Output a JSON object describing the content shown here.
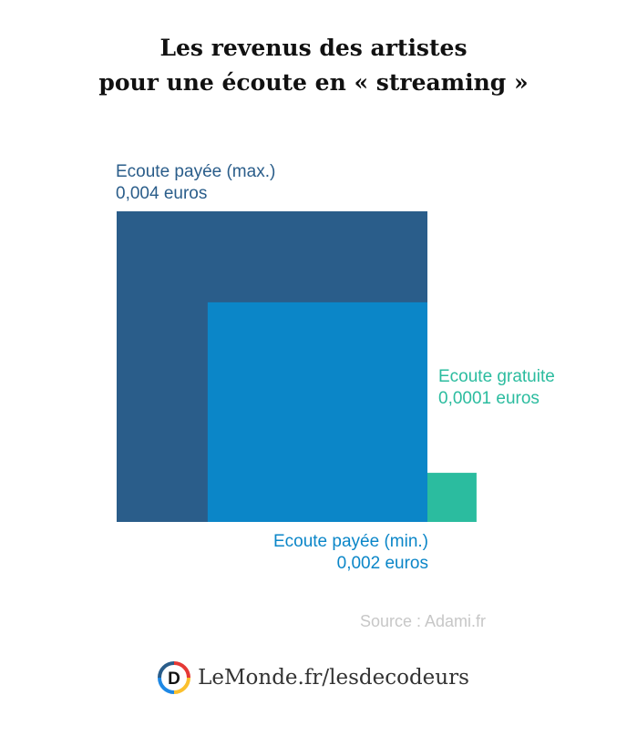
{
  "title_lines": [
    "Les revenus des artistes",
    "pour une écoute en « streaming »"
  ],
  "chart_data": {
    "type": "proportional-area",
    "unit": "euros",
    "items": [
      {
        "label": "Ecoute payée (max.)",
        "value": 0.004,
        "value_text": "0,004 euros",
        "color": "#2a5d8a"
      },
      {
        "label": "Ecoute payée (min.)",
        "value": 0.002,
        "value_text": "0,002 euros",
        "color": "#0b86c8"
      },
      {
        "label": "Ecoute gratuite",
        "value": 0.0001,
        "value_text": "0,0001 euros",
        "color": "#2bbc9f"
      }
    ]
  },
  "source": "Source : Adami.fr",
  "brand": {
    "logo_letter": "D",
    "text": "LeMonde.fr/lesdecodeurs"
  }
}
